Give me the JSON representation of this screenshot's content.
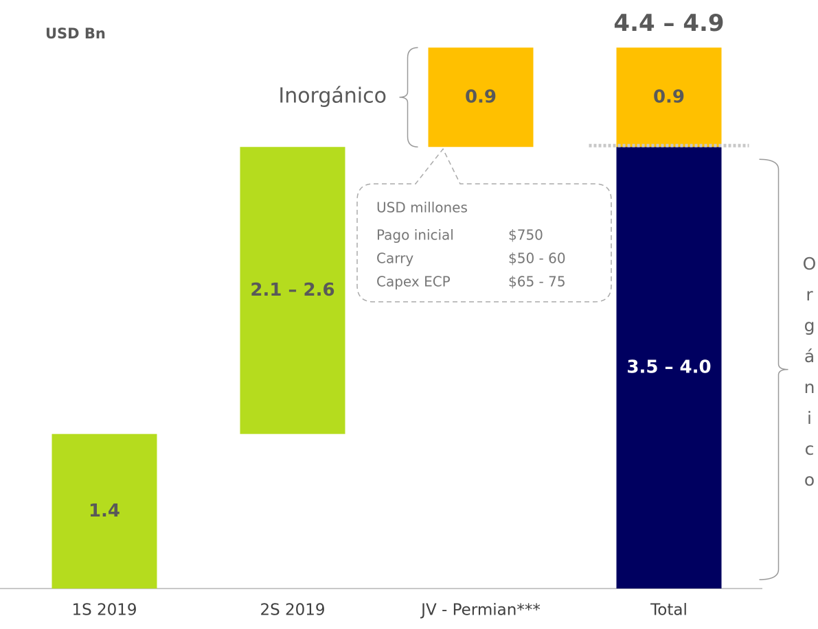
{
  "unit_label": "USD Bn",
  "chart_data": {
    "type": "waterfall",
    "categories": [
      "1S 2019",
      "2S 2019",
      "JV - Permian***",
      "Total"
    ],
    "ylim": [
      0,
      5.3
    ],
    "steps": [
      {
        "value": 1.4,
        "value_label": "1.4",
        "color": "#b5dc1e"
      },
      {
        "range": [
          2.1,
          2.6
        ],
        "value_label": "2.1 – 2.6",
        "color": "#b5dc1e"
      },
      {
        "value": 0.9,
        "value_label": "0.9",
        "color": "#ffc000"
      }
    ],
    "total": {
      "segments": [
        {
          "range": [
            3.5,
            4.0
          ],
          "value_label": "3.5 – 4.0",
          "color": "#000060",
          "label_color": "#ffffff"
        },
        {
          "value": 0.9,
          "value_label": "0.9",
          "color": "#ffc000"
        }
      ],
      "range": [
        4.4,
        4.9
      ],
      "value_label": "4.4 – 4.9"
    },
    "annotations": {
      "inorganic": "Inorgánico",
      "organic": "Orgánico"
    },
    "callout": {
      "title": "USD millones",
      "rows": [
        [
          "Pago inicial",
          "$750"
        ],
        [
          "Carry",
          "$50 - 60"
        ],
        [
          "Capex ECP",
          "$65 - 75"
        ]
      ]
    }
  }
}
